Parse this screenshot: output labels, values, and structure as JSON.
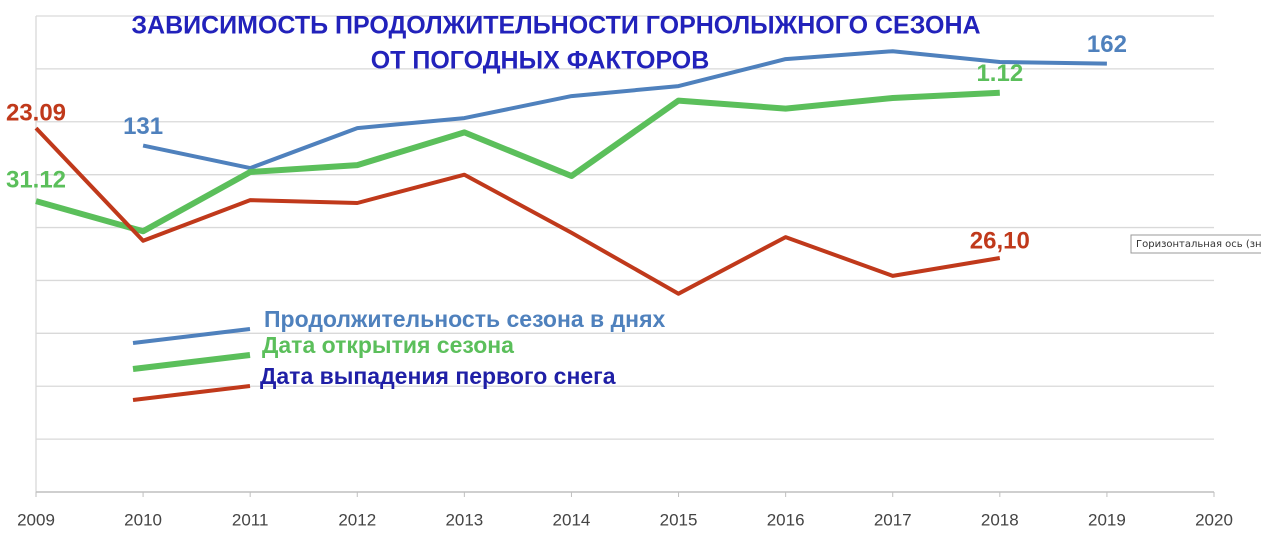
{
  "chart_data": {
    "type": "line",
    "title_lines": [
      "ЗАВИСИМОСТЬ ПРОДОЛЖИТЕЛЬНОСТИ ГОРНОЛЫЖНОГО СЕЗОНА",
      "ОТ ПОГОДНЫХ ФАКТОРОВ"
    ],
    "x": [
      2009,
      2010,
      2011,
      2012,
      2013,
      2014,
      2015,
      2016,
      2017,
      2018,
      2019
    ],
    "xlim": [
      2009,
      2020
    ],
    "xticks": [
      2009,
      2010,
      2011,
      2012,
      2013,
      2014,
      2015,
      2016,
      2017,
      2018,
      2019,
      2020
    ],
    "ylim": [
      0,
      180
    ],
    "yticks": [
      20,
      40,
      60,
      80,
      100,
      120,
      140,
      160,
      180
    ],
    "grid": true,
    "series": [
      {
        "name": "Продолжительность сезона в днях",
        "color": "#4f81bd",
        "text_color": "#4f81bd",
        "values": [
          null,
          131,
          122.5,
          137.6,
          141.4,
          149.7,
          153.5,
          163.7,
          166.7,
          162.6,
          162
        ],
        "value_labels": [
          null,
          "131",
          null,
          null,
          null,
          null,
          null,
          null,
          null,
          null,
          "162"
        ]
      },
      {
        "name": "Дата открытия сезона",
        "color": "#5bbf5b",
        "text_color": "#5bbf5b",
        "values": [
          110,
          98.6,
          121,
          123.6,
          136,
          119.5,
          148,
          145,
          149,
          151,
          null
        ],
        "point_labels": [
          "31.12",
          null,
          null,
          null,
          null,
          null,
          null,
          null,
          null,
          "1.12",
          null
        ]
      },
      {
        "name": "Дата выпадения первого снега",
        "color": "#c0391b",
        "text_color": "#1f1fa6",
        "values": [
          137.6,
          95,
          110.4,
          109.3,
          120,
          98,
          75,
          96.4,
          81.7,
          88.5,
          null
        ],
        "point_labels": [
          "23.09",
          null,
          null,
          null,
          null,
          null,
          null,
          null,
          null,
          "26,10",
          null
        ]
      }
    ],
    "tooltip": "Горизонтальная ось (значений)"
  }
}
